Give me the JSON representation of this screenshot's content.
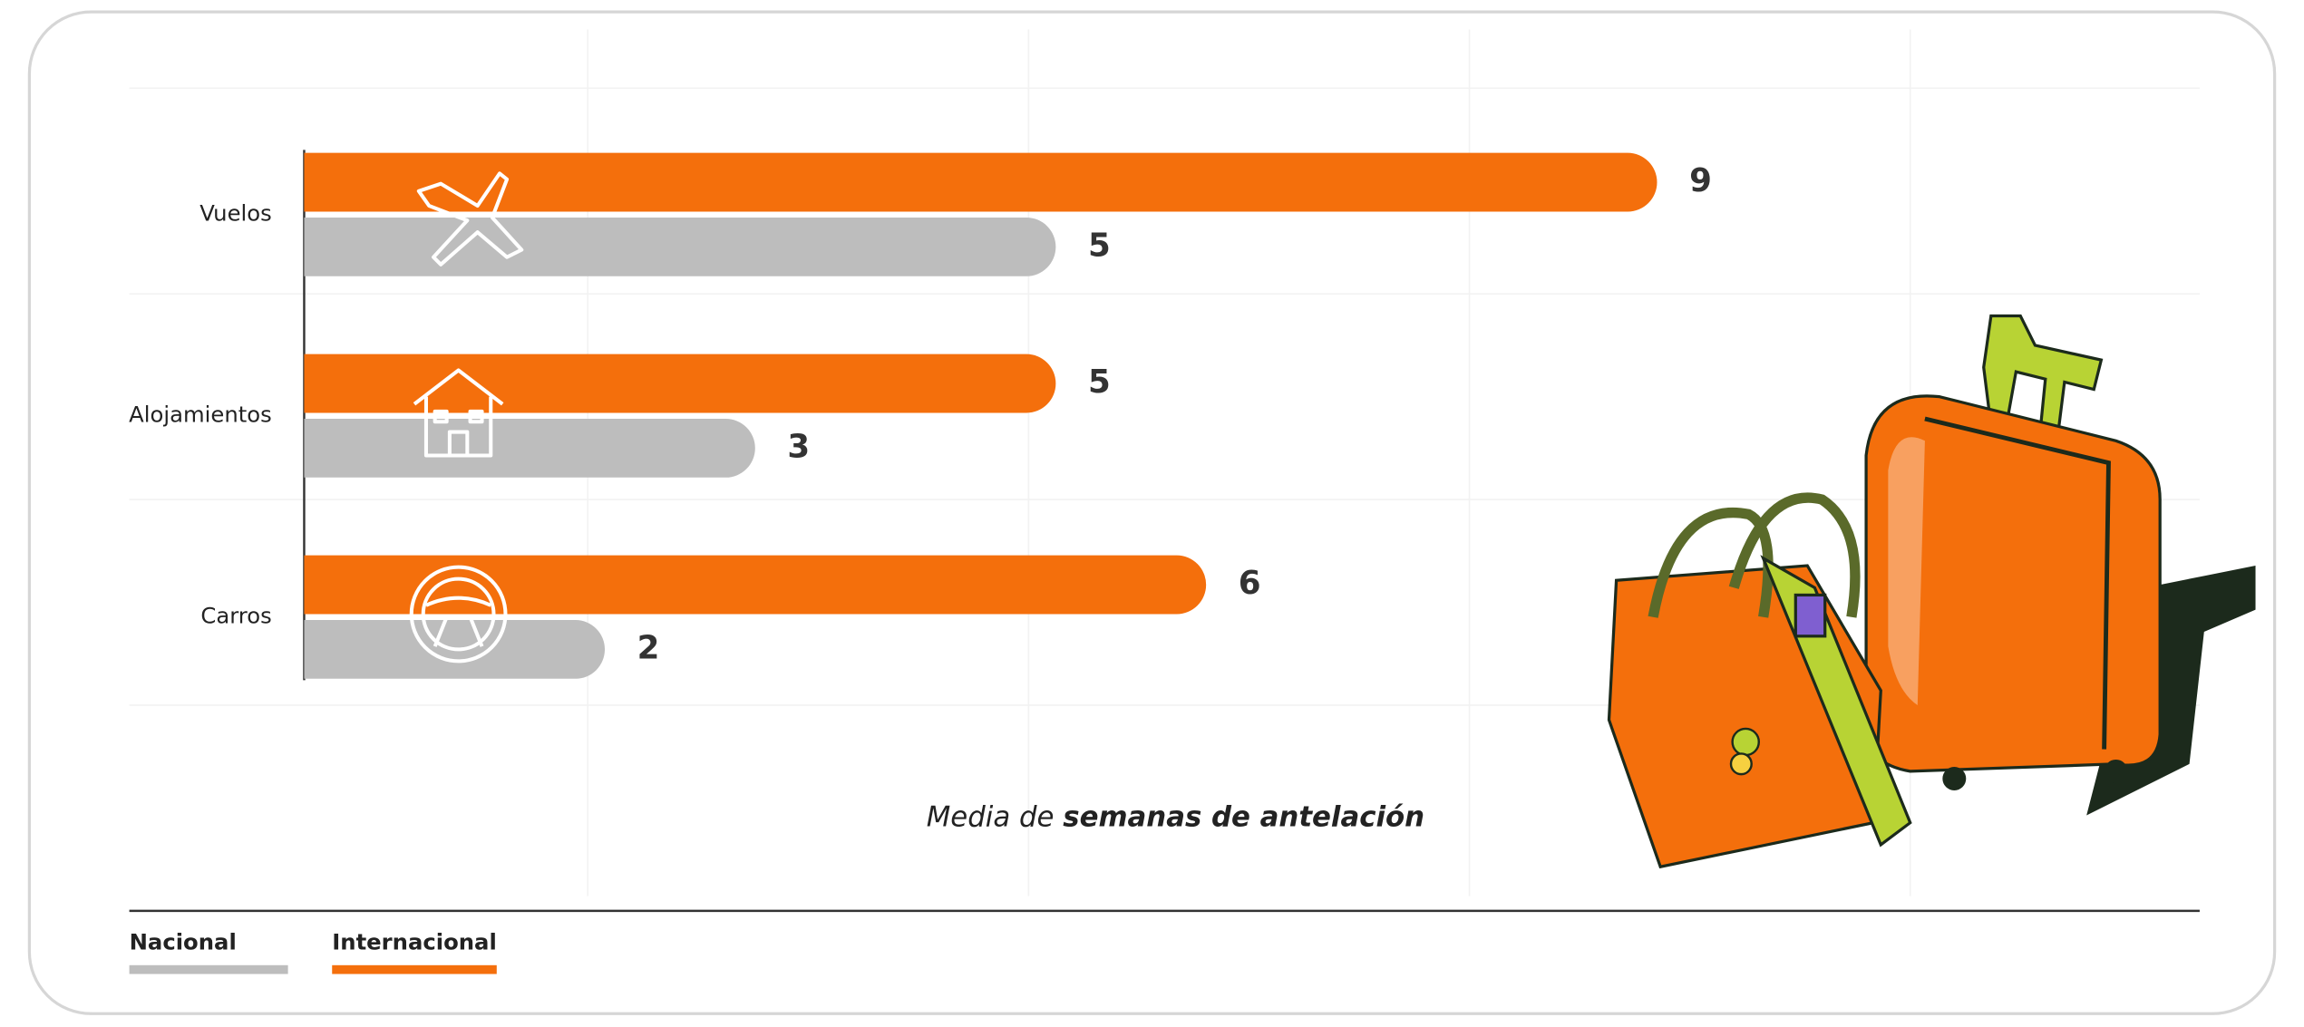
{
  "chart_data": {
    "type": "bar",
    "orientation": "horizontal",
    "categories": [
      "Vuelos",
      "Alojamientos",
      "Carros"
    ],
    "series": [
      {
        "name": "Nacional",
        "color": "#bdbdbd",
        "values": [
          5,
          3,
          2
        ]
      },
      {
        "name": "Internacional",
        "color": "#f46f0c",
        "values": [
          9,
          5,
          6
        ]
      }
    ],
    "xlabel": [
      "Media de",
      "semanas de antelación"
    ],
    "xlim": [
      0,
      10
    ],
    "legend": "bottom-left"
  }
}
